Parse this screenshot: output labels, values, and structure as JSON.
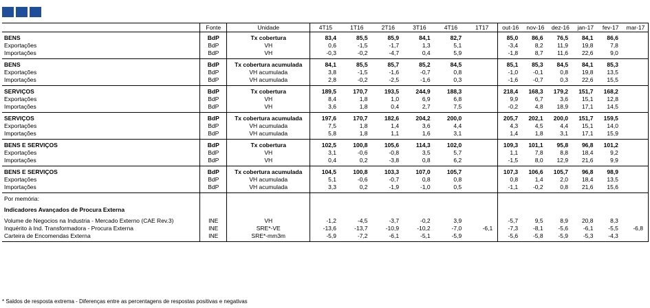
{
  "header": {
    "columns": [
      "",
      "Fonte",
      "Unidade",
      "4T15",
      "1T16",
      "2T16",
      "3T16",
      "4T16",
      "1T17",
      "out-16",
      "nov-16",
      "dez-16",
      "jan-17",
      "fev-17",
      "mar-17"
    ]
  },
  "groups": [
    {
      "rows": [
        {
          "label": "BENS",
          "fonte": "BdP",
          "unidade": "Tx cobertura",
          "values": [
            "83,4",
            "85,5",
            "85,9",
            "84,1",
            "82,7",
            "",
            "85,0",
            "86,6",
            "76,5",
            "84,1",
            "86,6",
            ""
          ],
          "title": true
        },
        {
          "label": "Exportações",
          "fonte": "BdP",
          "unidade": "VH",
          "values": [
            "0,6",
            "-1,5",
            "-1,7",
            "1,3",
            "5,1",
            "",
            "-3,4",
            "8,2",
            "11,9",
            "19,8",
            "7,8",
            ""
          ]
        },
        {
          "label": "Importações",
          "fonte": "BdP",
          "unidade": "VH",
          "values": [
            "-0,3",
            "-0,2",
            "-4,7",
            "0,4",
            "5,9",
            "",
            "-1,8",
            "8,7",
            "11,6",
            "22,6",
            "9,0",
            ""
          ]
        }
      ]
    },
    {
      "rows": [
        {
          "label": "BENS",
          "fonte": "BdP",
          "unidade": "Tx cobertura acumulada",
          "values": [
            "84,1",
            "85,5",
            "85,7",
            "85,2",
            "84,5",
            "",
            "85,1",
            "85,3",
            "84,5",
            "84,1",
            "85,3",
            ""
          ],
          "title": true
        },
        {
          "label": "Exportações",
          "fonte": "BdP",
          "unidade": "VH acumulada",
          "values": [
            "3,8",
            "-1,5",
            "-1,6",
            "-0,7",
            "0,8",
            "",
            "-1,0",
            "-0,1",
            "0,8",
            "19,8",
            "13,5",
            ""
          ]
        },
        {
          "label": "Importações",
          "fonte": "BdP",
          "unidade": "VH acumulada",
          "values": [
            "2,8",
            "-0,2",
            "-2,5",
            "-1,6",
            "0,3",
            "",
            "-1,6",
            "-0,7",
            "0,3",
            "22,6",
            "15,5",
            ""
          ]
        }
      ]
    },
    {
      "rows": [
        {
          "label": "SERVIÇOS",
          "fonte": "BdP",
          "unidade": "Tx cobertura",
          "values": [
            "189,5",
            "170,7",
            "193,5",
            "244,9",
            "188,3",
            "",
            "218,4",
            "168,3",
            "179,2",
            "151,7",
            "168,2",
            ""
          ],
          "title": true
        },
        {
          "label": "Exportações",
          "fonte": "BdP",
          "unidade": "VH",
          "values": [
            "8,4",
            "1,8",
            "1,0",
            "6,9",
            "6,8",
            "",
            "9,9",
            "6,7",
            "3,6",
            "15,1",
            "12,8",
            ""
          ]
        },
        {
          "label": "Importações",
          "fonte": "BdP",
          "unidade": "VH",
          "values": [
            "3,6",
            "1,8",
            "0,4",
            "2,7",
            "7,5",
            "",
            "-0,2",
            "4,8",
            "18,9",
            "17,1",
            "14,5",
            ""
          ]
        }
      ]
    },
    {
      "rows": [
        {
          "label": "SERVIÇOS",
          "fonte": "BdP",
          "unidade": "Tx cobertura acumulada",
          "values": [
            "197,6",
            "170,7",
            "182,6",
            "204,2",
            "200,0",
            "",
            "205,7",
            "202,1",
            "200,0",
            "151,7",
            "159,5",
            ""
          ],
          "title": true
        },
        {
          "label": "Exportações",
          "fonte": "BdP",
          "unidade": "VH acumulada",
          "values": [
            "7,5",
            "1,8",
            "1,4",
            "3,6",
            "4,4",
            "",
            "4,3",
            "4,5",
            "4,4",
            "15,1",
            "14,0",
            ""
          ]
        },
        {
          "label": "Importações",
          "fonte": "BdP",
          "unidade": "VH acumulada",
          "values": [
            "5,8",
            "1,8",
            "1,1",
            "1,6",
            "3,1",
            "",
            "1,4",
            "1,8",
            "3,1",
            "17,1",
            "15,9",
            ""
          ]
        }
      ]
    },
    {
      "rows": [
        {
          "label": "BENS E SERVIÇOS",
          "fonte": "BdP",
          "unidade": "Tx cobertura",
          "values": [
            "102,5",
            "100,8",
            "105,6",
            "114,3",
            "102,0",
            "",
            "109,3",
            "101,1",
            "95,8",
            "96,8",
            "101,2",
            ""
          ],
          "title": true
        },
        {
          "label": "Exportações",
          "fonte": "BdP",
          "unidade": "VH",
          "values": [
            "3,1",
            "-0,6",
            "-0,8",
            "3,5",
            "5,7",
            "",
            "1,1",
            "7,8",
            "8,8",
            "18,4",
            "9,2",
            ""
          ]
        },
        {
          "label": "Importações",
          "fonte": "BdP",
          "unidade": "VH",
          "values": [
            "0,4",
            "0,2",
            "-3,8",
            "0,8",
            "6,2",
            "",
            "-1,5",
            "8,0",
            "12,9",
            "21,6",
            "9,9",
            ""
          ]
        }
      ]
    },
    {
      "rows": [
        {
          "label": "BENS E SERVIÇOS",
          "fonte": "BdP",
          "unidade": "Tx cobertura acumulada",
          "values": [
            "104,5",
            "100,8",
            "103,3",
            "107,0",
            "105,7",
            "",
            "107,3",
            "106,6",
            "105,7",
            "96,8",
            "98,9",
            ""
          ],
          "title": true
        },
        {
          "label": "Exportações",
          "fonte": "BdP",
          "unidade": "VH acumulada",
          "values": [
            "5,1",
            "-0,6",
            "-0,7",
            "0,8",
            "0,8",
            "",
            "0,8",
            "1,4",
            "2,0",
            "18,4",
            "13,5",
            ""
          ]
        },
        {
          "label": "Importações",
          "fonte": "BdP",
          "unidade": "VH acumulada",
          "values": [
            "3,3",
            "0,2",
            "-1,9",
            "-1,0",
            "0,5",
            "",
            "-1,1",
            "-0,2",
            "0,8",
            "21,6",
            "15,6",
            ""
          ]
        }
      ]
    },
    {
      "rows": [
        {
          "label": "Por memória:",
          "fonte": "",
          "unidade": "",
          "values": [
            "",
            "",
            "",
            "",
            "",
            "",
            "",
            "",
            "",
            "",
            "",
            ""
          ]
        },
        {
          "spacer": true
        },
        {
          "label": "Indicadores Avançados de Procura Externa",
          "fonte": "",
          "unidade": "",
          "values": [
            "",
            "",
            "",
            "",
            "",
            "",
            "",
            "",
            "",
            "",
            "",
            ""
          ],
          "title": true
        },
        {
          "spacer": true
        },
        {
          "label": "Volume de Negocios na Industria - Mercado Externo (CAE Rev.3)",
          "fonte": "INE",
          "unidade": "VH",
          "values": [
            "-1,2",
            "-4,5",
            "-3,7",
            "-0,2",
            "3,9",
            "",
            "-5,7",
            "9,5",
            "8,9",
            "20,8",
            "8,3",
            ""
          ]
        },
        {
          "label": "Inquérito à Ind. Transformadora - Procura Externa",
          "fonte": "INE",
          "unidade": "SRE*-VE",
          "values": [
            "-13,6",
            "-13,7",
            "-10,9",
            "-10,2",
            "-7,0",
            "-6,1",
            "-7,3",
            "-8,1",
            "-5,6",
            "-6,1",
            "-5,5",
            "-6,8"
          ]
        },
        {
          "label": "Carteira de Encomendas Externa",
          "fonte": "INE",
          "unidade": "SRE*-mm3m",
          "values": [
            "-5,9",
            "-7,2",
            "-6,1",
            "-5,1",
            "-5,9",
            "",
            "-5,6",
            "-5,8",
            "-5,9",
            "-5,3",
            "-4,3",
            ""
          ]
        }
      ]
    }
  ],
  "footnote": "* Saldos de resposta extrema - Diferenças entre as percentagens de respostas positivas e negativas",
  "colors": {
    "header_squares": "#1f4e9a"
  }
}
